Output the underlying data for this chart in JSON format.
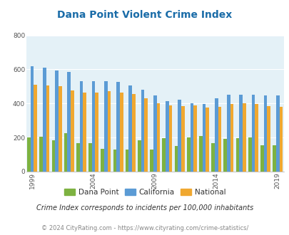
{
  "title": "Dana Point Violent Crime Index",
  "years": [
    1999,
    2000,
    2001,
    2002,
    2003,
    2004,
    2005,
    2006,
    2007,
    2008,
    2009,
    2010,
    2011,
    2012,
    2013,
    2014,
    2015,
    2016,
    2017,
    2018,
    2019
  ],
  "dana_point": [
    200,
    205,
    185,
    225,
    165,
    165,
    135,
    130,
    130,
    185,
    130,
    195,
    150,
    200,
    210,
    165,
    190,
    195,
    200,
    155,
    155
  ],
  "california": [
    620,
    610,
    595,
    585,
    530,
    530,
    530,
    525,
    505,
    480,
    445,
    415,
    420,
    400,
    395,
    430,
    450,
    450,
    450,
    445,
    445
  ],
  "national": [
    510,
    505,
    500,
    475,
    465,
    465,
    470,
    465,
    455,
    430,
    400,
    390,
    385,
    390,
    375,
    380,
    395,
    400,
    395,
    385,
    380
  ],
  "colors": {
    "dana_point": "#7db241",
    "california": "#5b9bd5",
    "national": "#f0a830"
  },
  "ylim": [
    0,
    800
  ],
  "yticks": [
    0,
    200,
    400,
    600,
    800
  ],
  "bg_color": "#e4f1f7",
  "title_color": "#1a6ca8",
  "subtitle": "Crime Index corresponds to incidents per 100,000 inhabitants",
  "footer": "© 2024 CityRating.com - https://www.cityrating.com/crime-statistics/",
  "legend_labels": [
    "Dana Point",
    "California",
    "National"
  ],
  "xtick_years": [
    1999,
    2004,
    2009,
    2014,
    2019
  ]
}
